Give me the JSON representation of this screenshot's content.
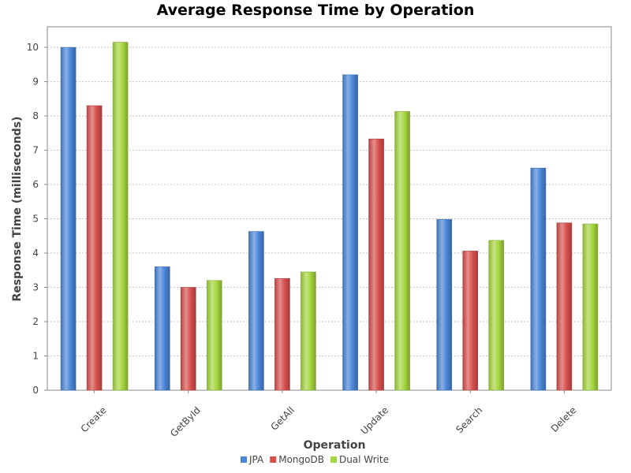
{
  "chart_data": {
    "type": "bar",
    "title": "Average Response Time by Operation",
    "xlabel": "Operation",
    "ylabel": "Response Time (milliseconds)",
    "categories": [
      "Create",
      "GetById",
      "GetAll",
      "Update",
      "Search",
      "Delete"
    ],
    "series": [
      {
        "name": "JPA",
        "color": "#4a86d8",
        "values": [
          10.0,
          3.6,
          4.63,
          9.2,
          4.98,
          6.48
        ]
      },
      {
        "name": "MongoDB",
        "color": "#d8504e",
        "values": [
          8.3,
          3.0,
          3.26,
          7.33,
          4.06,
          4.88
        ]
      },
      {
        "name": "Dual Write",
        "color": "#a5d63f",
        "values": [
          10.15,
          3.2,
          3.45,
          8.13,
          4.37,
          4.85
        ]
      }
    ],
    "ylim": [
      0,
      10.6
    ],
    "yticks": [
      "0",
      "1",
      "2",
      "3",
      "4",
      "5",
      "6",
      "7",
      "8",
      "9",
      "10"
    ],
    "grid": true,
    "legend_position": "bottom"
  }
}
